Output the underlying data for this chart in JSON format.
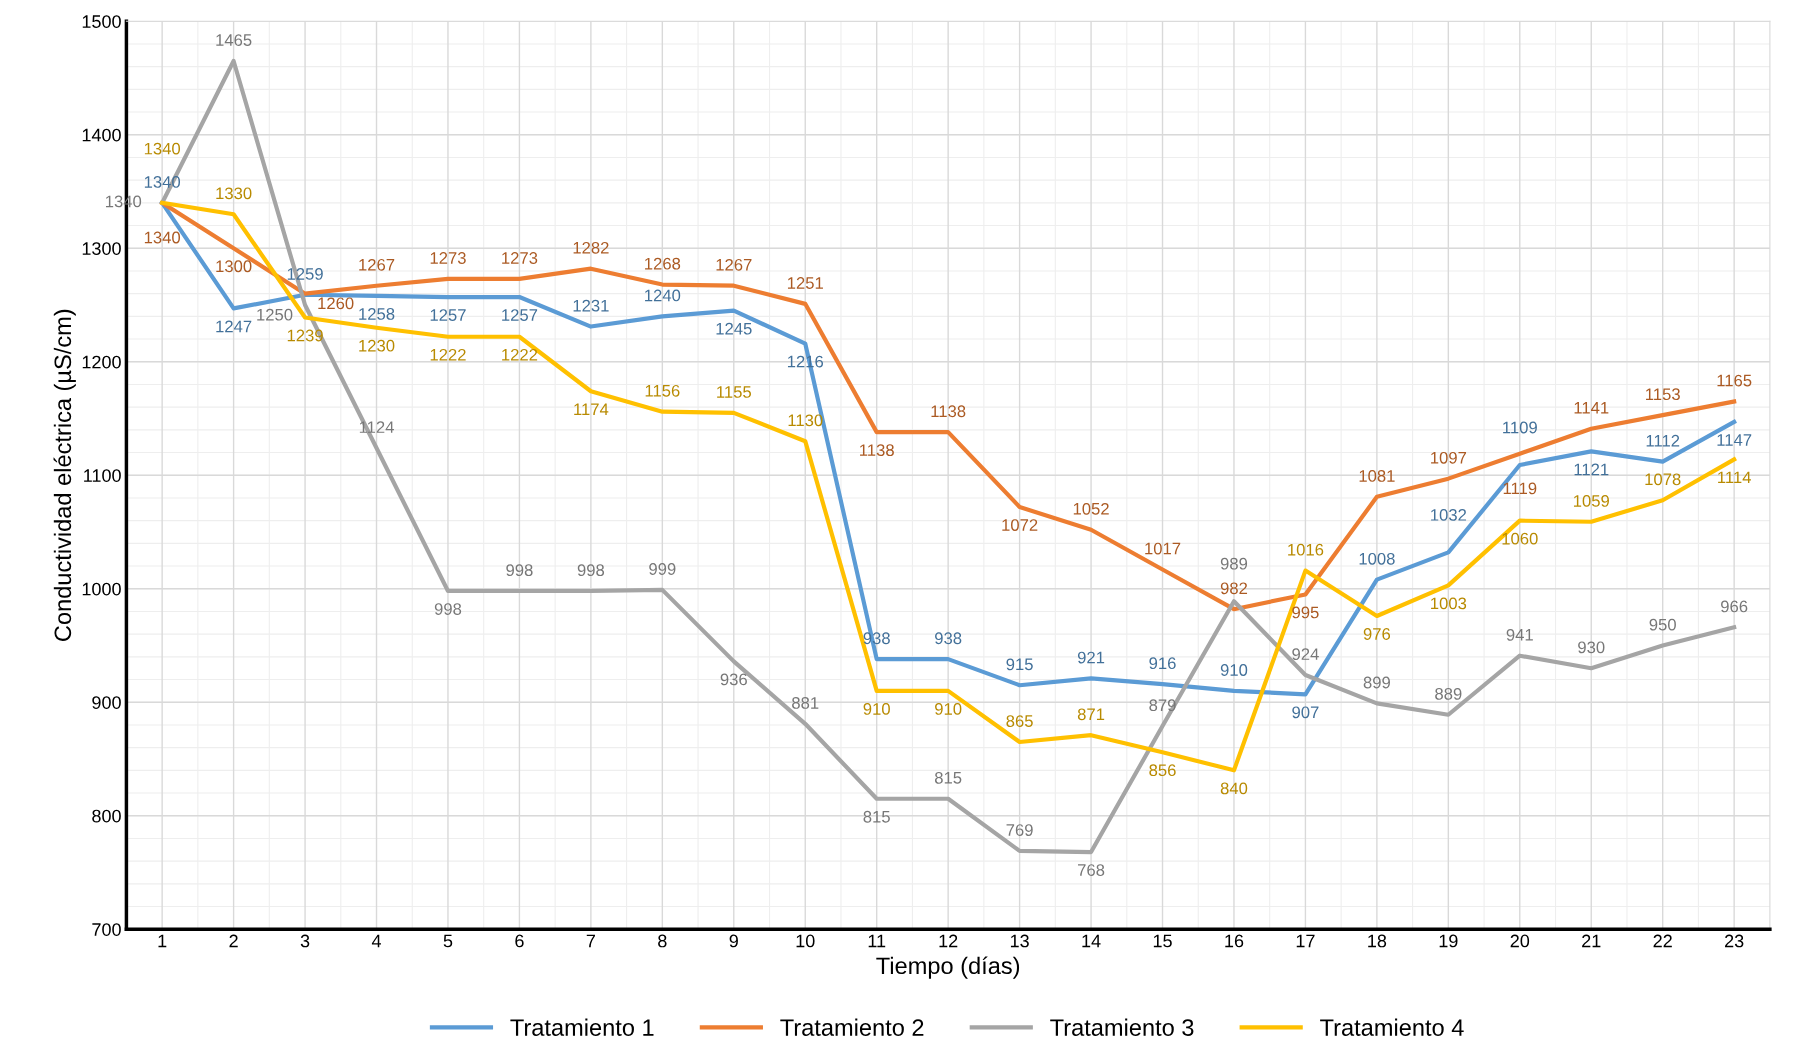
{
  "chart_data": {
    "type": "line",
    "xlabel": "Tiempo (días)",
    "ylabel": "Conductividad eléctrica (µS/cm)",
    "categories": [
      "1",
      "2",
      "3",
      "4",
      "5",
      "6",
      "7",
      "8",
      "9",
      "10",
      "11",
      "12",
      "13",
      "14",
      "15",
      "16",
      "17",
      "18",
      "19",
      "20",
      "21",
      "22",
      "23"
    ],
    "ylim": [
      700,
      1500
    ],
    "yticks": [
      700,
      800,
      900,
      1000,
      1100,
      1200,
      1300,
      1400,
      1500
    ],
    "grid": true,
    "legend": "bottom",
    "data_labels": true,
    "marker": "none",
    "line_style": "solid",
    "series": [
      {
        "name": "Tratamiento 1",
        "color": "#5b9bd5",
        "values": [
          1340,
          1247,
          1259,
          1258,
          1257,
          1257,
          1231,
          1240,
          1245,
          1216,
          938,
          938,
          915,
          921,
          916,
          910,
          907,
          1008,
          1032,
          1109,
          1121,
          1112,
          1147
        ]
      },
      {
        "name": "Tratamiento 2",
        "color": "#ed7d31",
        "values": [
          1340,
          1300,
          1260,
          1267,
          1273,
          1273,
          1282,
          1268,
          1267,
          1251,
          1138,
          1138,
          1072,
          1052,
          1017,
          982,
          995,
          1081,
          1097,
          1119,
          1141,
          1153,
          1165
        ]
      },
      {
        "name": "Tratamiento 3",
        "color": "#a5a5a5",
        "values": [
          1340,
          1465,
          1250,
          1124,
          998,
          998,
          998,
          999,
          936,
          881,
          815,
          815,
          769,
          768,
          879,
          989,
          924,
          899,
          889,
          941,
          930,
          950,
          966
        ]
      },
      {
        "name": "Tratamiento 4",
        "color": "#ffc000",
        "values": [
          1340,
          1330,
          1239,
          1230,
          1222,
          1222,
          1174,
          1156,
          1155,
          1130,
          910,
          910,
          865,
          871,
          856,
          840,
          1016,
          976,
          1003,
          1060,
          1059,
          1078,
          1114
        ]
      }
    ]
  }
}
